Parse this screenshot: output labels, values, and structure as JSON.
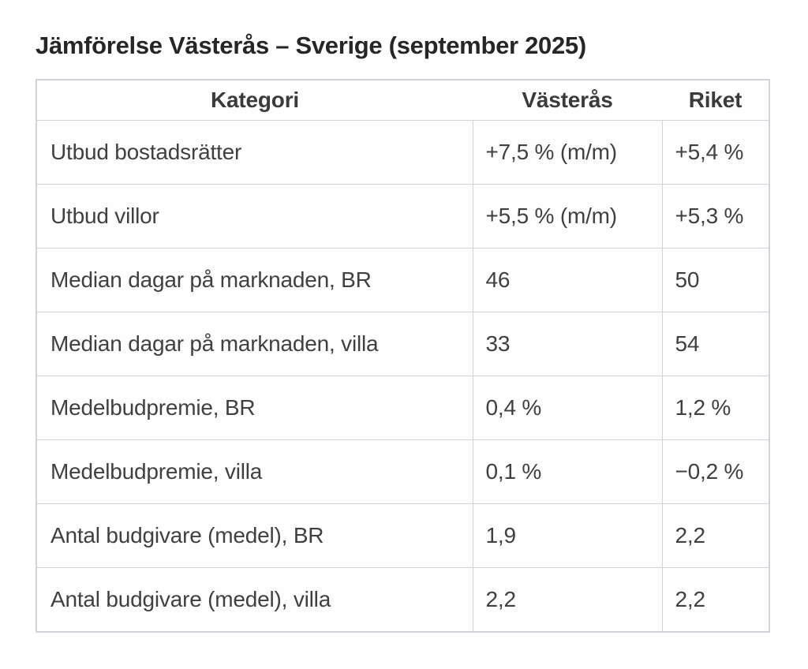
{
  "title": "Jämförelse Västerås – Sverige (september 2025)",
  "table": {
    "columns": [
      "Kategori",
      "Västerås",
      "Riket"
    ],
    "rows": [
      [
        "Utbud bostadsrätter",
        "+7,5 % (m/m)",
        "+5,4 %"
      ],
      [
        "Utbud villor",
        "+5,5 % (m/m)",
        "+5,3 %"
      ],
      [
        "Median dagar på marknaden, BR",
        "46",
        "50"
      ],
      [
        "Median dagar på marknaden, villa",
        "33",
        "54"
      ],
      [
        "Medelbudpremie, BR",
        "0,4 %",
        "1,2 %"
      ],
      [
        "Medelbudpremie, villa",
        "0,1 %",
        "−0,2 %"
      ],
      [
        "Antal budgivare (medel), BR",
        "1,9",
        "2,2"
      ],
      [
        "Antal budgivare (medel), villa",
        "2,2",
        "2,2"
      ]
    ]
  },
  "colors": {
    "background": "#ffffff",
    "border": "#d2d2da",
    "cell_text": "#404040",
    "title_text": "#262626"
  }
}
